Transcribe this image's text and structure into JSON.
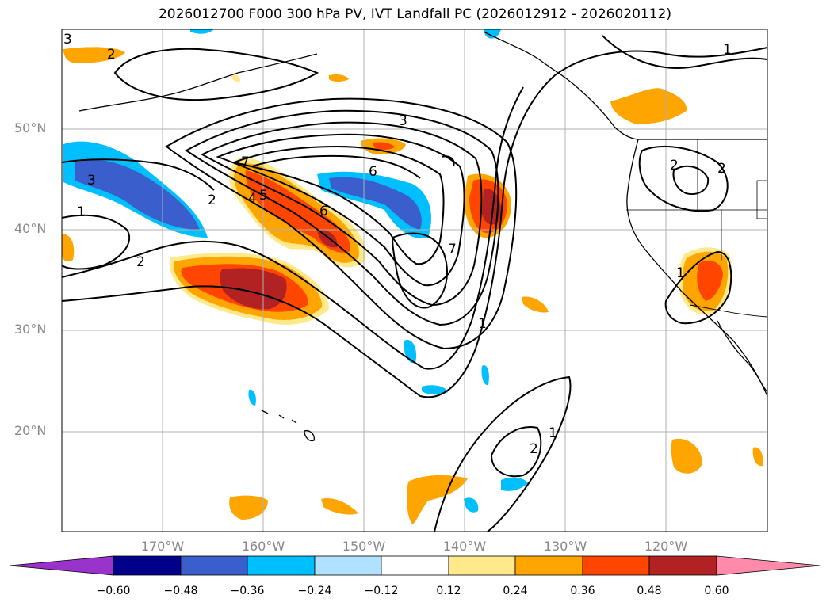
{
  "title": "2026012700 F000 300 hPa PV, IVT Landfall PC (2026012912 - 2026020112)",
  "map": {
    "lat_labels": [
      "50°N",
      "40°N",
      "30°N",
      "20°N"
    ],
    "lon_labels": [
      "170°W",
      "160°W",
      "150°W",
      "140°W",
      "130°W",
      "120°W"
    ],
    "contour_labels": [
      "3",
      "2",
      "3",
      "2",
      "2",
      "3",
      "4",
      "5",
      "6",
      "6",
      "7",
      "7",
      "1",
      "1",
      "2",
      "2",
      "1",
      "1",
      "2",
      "1"
    ]
  },
  "colorbar": {
    "ticks": [
      "−0.60",
      "−0.48",
      "−0.36",
      "−0.24",
      "−0.12",
      "0.12",
      "0.24",
      "0.36",
      "0.48",
      "0.60"
    ],
    "colors": [
      "#9933cc",
      "#00008b",
      "#3a5fcd",
      "#00bfff",
      "#b0e2ff",
      "#ffffff",
      "#ffe98a",
      "#ffa500",
      "#ff4500",
      "#b22222",
      "#ff8aaa"
    ]
  }
}
